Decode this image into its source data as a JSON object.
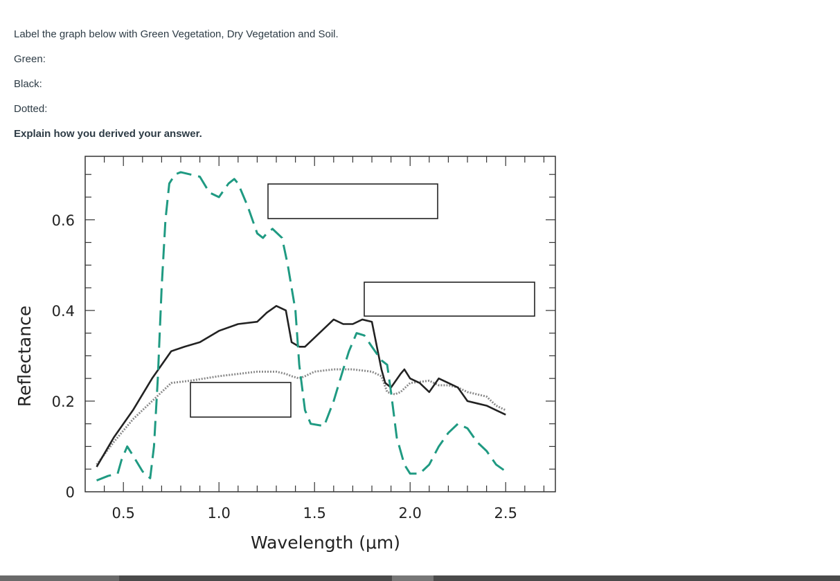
{
  "question": {
    "prompt": "Label the graph below with Green Vegetation, Dry Vegetation and Soil.",
    "items": [
      "Green:",
      "Black:",
      "Dotted:"
    ],
    "explain": "Explain how you derived your answer."
  },
  "colors": {
    "green": "#1f9a82",
    "black": "#222222",
    "dotted": "#8a8a8a"
  },
  "chart_data": {
    "type": "line",
    "xlabel": "Wavelength (μm)",
    "ylabel": "Reflectance",
    "xlim": [
      0.3,
      2.76
    ],
    "ylim": [
      0,
      0.74
    ],
    "x_ticks": [
      "0.5",
      "1.0",
      "1.5",
      "2.0",
      "2.5"
    ],
    "y_ticks": [
      "0",
      "0.2",
      "0.4",
      "0.6"
    ],
    "series": [
      {
        "key": "green",
        "style": "dashed",
        "x": [
          0.36,
          0.42,
          0.47,
          0.49,
          0.52,
          0.55,
          0.6,
          0.64,
          0.66,
          0.68,
          0.7,
          0.72,
          0.74,
          0.77,
          0.8,
          0.85,
          0.9,
          0.95,
          1.0,
          1.05,
          1.08,
          1.1,
          1.15,
          1.2,
          1.23,
          1.25,
          1.28,
          1.33,
          1.36,
          1.4,
          1.42,
          1.45,
          1.48,
          1.55,
          1.6,
          1.65,
          1.68,
          1.72,
          1.76,
          1.8,
          1.85,
          1.88,
          1.9,
          1.93,
          1.97,
          2.0,
          2.05,
          2.1,
          2.15,
          2.2,
          2.25,
          2.3,
          2.35,
          2.4,
          2.45,
          2.5
        ],
        "y": [
          0.025,
          0.035,
          0.04,
          0.07,
          0.1,
          0.08,
          0.045,
          0.03,
          0.1,
          0.25,
          0.45,
          0.6,
          0.68,
          0.7,
          0.705,
          0.7,
          0.695,
          0.66,
          0.65,
          0.68,
          0.69,
          0.68,
          0.63,
          0.57,
          0.56,
          0.57,
          0.58,
          0.56,
          0.5,
          0.4,
          0.28,
          0.18,
          0.15,
          0.145,
          0.2,
          0.27,
          0.31,
          0.35,
          0.345,
          0.32,
          0.29,
          0.28,
          0.22,
          0.12,
          0.06,
          0.04,
          0.04,
          0.06,
          0.1,
          0.13,
          0.15,
          0.14,
          0.11,
          0.09,
          0.06,
          0.045
        ]
      },
      {
        "key": "black",
        "style": "solid",
        "x": [
          0.36,
          0.45,
          0.55,
          0.65,
          0.75,
          0.82,
          0.9,
          1.0,
          1.1,
          1.2,
          1.25,
          1.3,
          1.35,
          1.38,
          1.42,
          1.45,
          1.5,
          1.55,
          1.6,
          1.65,
          1.7,
          1.75,
          1.8,
          1.85,
          1.87,
          1.9,
          1.95,
          1.97,
          2.0,
          2.05,
          2.1,
          2.15,
          2.2,
          2.25,
          2.3,
          2.35,
          2.4,
          2.45,
          2.5
        ],
        "y": [
          0.055,
          0.12,
          0.18,
          0.25,
          0.31,
          0.32,
          0.33,
          0.355,
          0.37,
          0.375,
          0.395,
          0.41,
          0.4,
          0.33,
          0.32,
          0.32,
          0.34,
          0.36,
          0.38,
          0.37,
          0.37,
          0.38,
          0.375,
          0.27,
          0.24,
          0.23,
          0.26,
          0.27,
          0.25,
          0.24,
          0.22,
          0.25,
          0.24,
          0.23,
          0.2,
          0.195,
          0.19,
          0.18,
          0.17
        ]
      },
      {
        "key": "dotted",
        "style": "dotted",
        "x": [
          0.36,
          0.45,
          0.55,
          0.65,
          0.75,
          0.85,
          1.0,
          1.1,
          1.2,
          1.3,
          1.35,
          1.38,
          1.42,
          1.45,
          1.5,
          1.6,
          1.7,
          1.8,
          1.85,
          1.88,
          1.92,
          1.95,
          2.0,
          2.1,
          2.15,
          2.2,
          2.25,
          2.3,
          2.35,
          2.4,
          2.45,
          2.5
        ],
        "y": [
          0.06,
          0.11,
          0.16,
          0.2,
          0.24,
          0.245,
          0.255,
          0.26,
          0.265,
          0.265,
          0.26,
          0.255,
          0.25,
          0.255,
          0.265,
          0.27,
          0.27,
          0.265,
          0.255,
          0.22,
          0.215,
          0.22,
          0.24,
          0.245,
          0.235,
          0.235,
          0.23,
          0.22,
          0.215,
          0.21,
          0.19,
          0.18
        ]
      }
    ],
    "grid": false,
    "legend": "none"
  }
}
